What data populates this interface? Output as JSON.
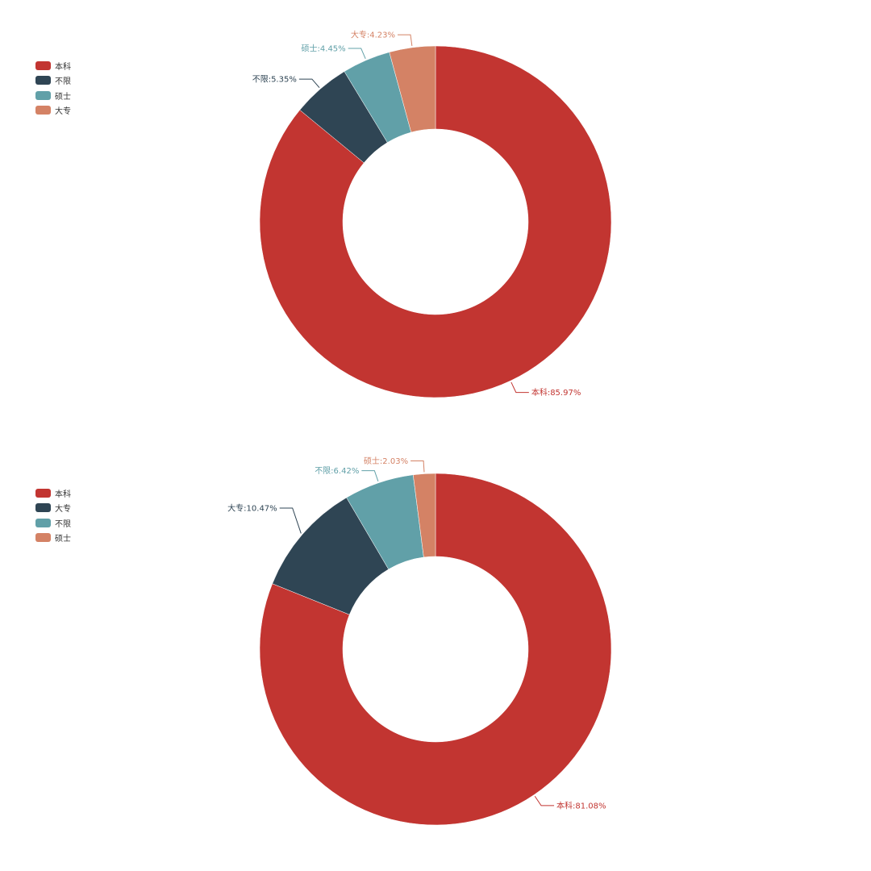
{
  "chart_data": [
    {
      "type": "pie",
      "donut": true,
      "categories": [
        "本科",
        "不限",
        "硕士",
        "大专"
      ],
      "values": [
        85.97,
        5.35,
        4.45,
        4.23
      ],
      "labels": [
        "本科:85.97%",
        "不限:5.35%",
        "硕士:4.45%",
        "大专:4.23%"
      ],
      "colors": [
        "#c23531",
        "#2f4554",
        "#61a0a8",
        "#d48265"
      ],
      "legend_position": "top-left"
    },
    {
      "type": "pie",
      "donut": true,
      "categories": [
        "本科",
        "大专",
        "不限",
        "硕士"
      ],
      "values": [
        81.08,
        10.47,
        6.42,
        2.03
      ],
      "labels": [
        "本科:81.08%",
        "大专:10.47%",
        "不限:6.42%",
        "硕士:2.03%"
      ],
      "colors": [
        "#c23531",
        "#2f4554",
        "#61a0a8",
        "#d48265"
      ],
      "legend_position": "top-left"
    }
  ]
}
